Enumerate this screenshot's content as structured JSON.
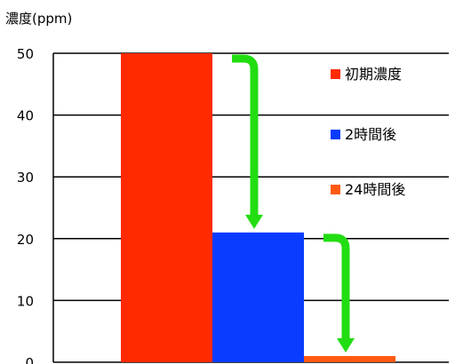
{
  "chart_data": {
    "type": "bar",
    "ylabel": "濃度(ppm)",
    "ylim": [
      0,
      50
    ],
    "yticks": [
      0,
      10,
      20,
      30,
      40,
      50
    ],
    "grid": true,
    "legend_position": "right",
    "series": [
      {
        "name": "初期濃度",
        "value": 50,
        "color": "#ff2a00"
      },
      {
        "name": "2時間後",
        "value": 21,
        "color": "#0a3cff"
      },
      {
        "name": "24時間後",
        "value": 1,
        "color": "#ff5a14"
      }
    ],
    "annotations": [
      {
        "type": "arrow",
        "from_series": 0,
        "to_series": 1,
        "color": "#22dd11"
      },
      {
        "type": "arrow",
        "from_series": 1,
        "to_series": 2,
        "color": "#22dd11"
      }
    ]
  }
}
